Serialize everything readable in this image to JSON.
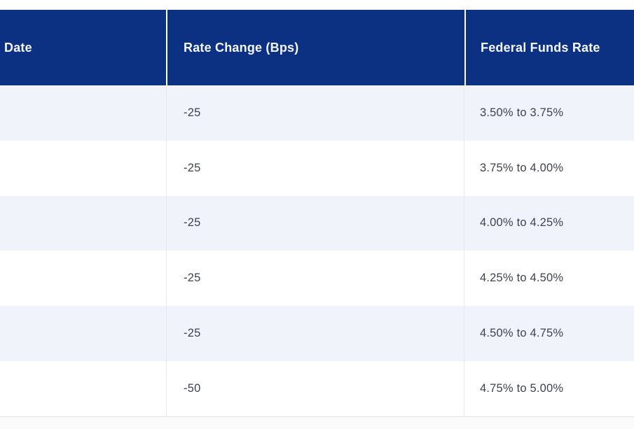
{
  "chart_data": {
    "type": "table",
    "title": "",
    "columns": [
      "Date",
      "Rate Change (Bps)",
      "Federal Funds Rate"
    ],
    "rows": [
      [
        "",
        "-25",
        "3.50% to 3.75%"
      ],
      [
        "",
        "-25",
        "3.75% to 4.00%"
      ],
      [
        "",
        "-25",
        "4.00% to 4.25%"
      ],
      [
        "",
        "-25",
        "4.25% to 4.50%"
      ],
      [
        "",
        "-25",
        "4.50% to 4.75%"
      ],
      [
        "",
        "-50",
        "4.75% to 5.00%"
      ]
    ],
    "layout_hints": {
      "zebra_striping": true,
      "striped_row_indexes": [
        0,
        2,
        4
      ],
      "date_column_cells_empty_cropped": true
    }
  },
  "colors": {
    "header_bg": "#0d3182",
    "header_text": "#f4f7ff",
    "row_stripe_bg": "#f0f3fa",
    "row_bg": "#ffffff",
    "body_text": "#3d424c",
    "column_rule": "#e8e8ec",
    "bottom_border": "#e3e3e6"
  }
}
